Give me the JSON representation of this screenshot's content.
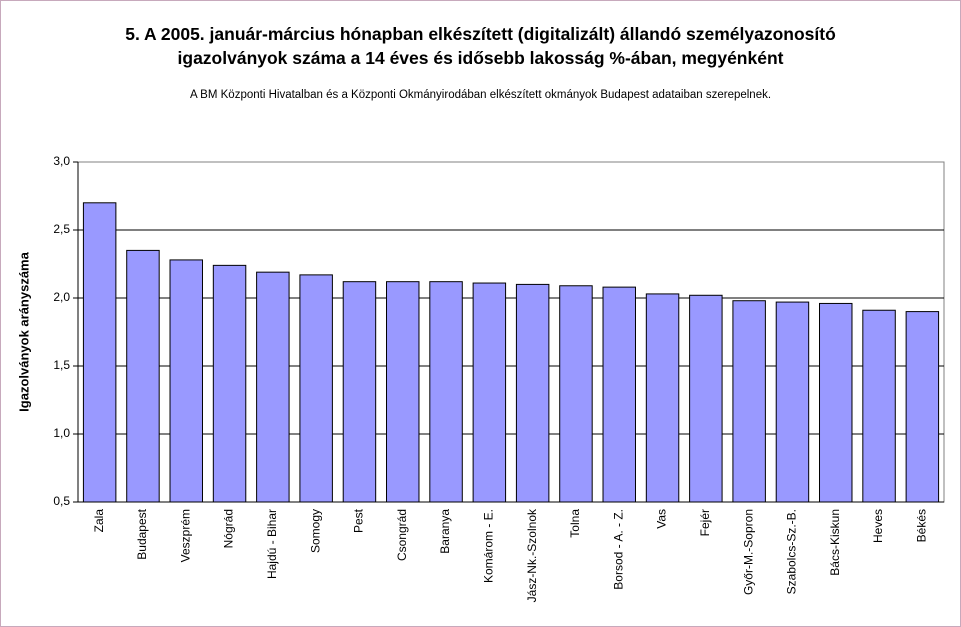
{
  "chart_data": {
    "type": "bar",
    "title_line1": "5. A 2005. január-március hónapban elkészített (digitalizált) állandó személyazonosító",
    "title_line2": "igazolványok száma a 14 éves és idősebb lakosság %-ában,  megyénként",
    "subtitle": "A BM Központi Hivatalban és a Központi Okmányirodában elkészített  okmányok Budapest adataiban szerepelnek.",
    "xlabel": "",
    "ylabel": "Igazolványok arányszáma",
    "ylim": [
      0.5,
      3.0
    ],
    "ytick_values": [
      0.5,
      1.0,
      1.5,
      2.0,
      2.5,
      3.0
    ],
    "ytick_labels": [
      "0,5",
      "1,0",
      "1,5",
      "2,0",
      "2,5",
      "3,0"
    ],
    "grid": true,
    "bar_color": "#9999ff",
    "categories": [
      "Zala",
      "Budapest",
      "Veszprém",
      "Nógrád",
      "Hajdú - Bihar",
      "Somogy",
      "Pest",
      "Csongrád",
      "Baranya",
      "Komárom - E.",
      "Jász-Nk.-Szolnok",
      "Tolna",
      "Borsod - A. - Z.",
      "Vas",
      "Fejér",
      "Győr-M.-Sopron",
      "Szabolcs-Sz.-B.",
      "Bács-Kiskun",
      "Heves",
      "Békés"
    ],
    "values": [
      2.7,
      2.35,
      2.28,
      2.24,
      2.19,
      2.17,
      2.12,
      2.12,
      2.12,
      2.11,
      2.1,
      2.09,
      2.08,
      2.03,
      2.02,
      1.98,
      1.97,
      1.96,
      1.91,
      1.9
    ]
  }
}
